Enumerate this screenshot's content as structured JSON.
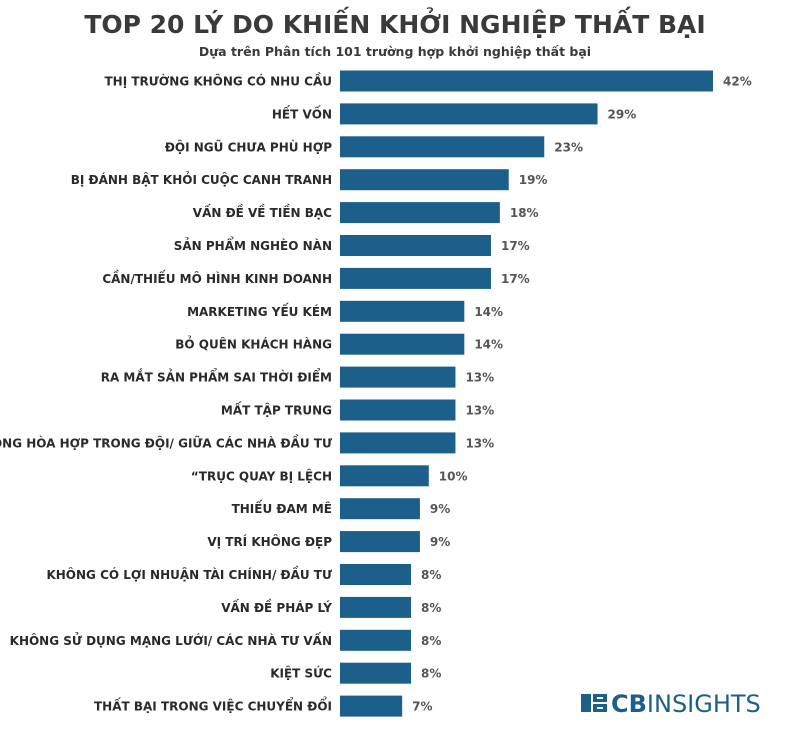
{
  "chart_data": {
    "type": "bar",
    "orientation": "horizontal",
    "title": "TOP 20 LÝ DO KHIẾN KHỞI NGHIỆP THẤT BẠI",
    "subtitle": "Dựa trên Phân tích 101 trường hợp khởi nghiệp thất bại",
    "categories": [
      "THỊ TRƯỜNG KHÔNG CÓ NHU CẦU",
      "HẾT VỐN",
      "ĐỘI NGŨ CHƯA PHÙ HỢP",
      "BỊ ĐÁNH BẬT KHỎI CUỘC CANH TRANH",
      "VẤN ĐỀ VỀ TIỀN BẠC",
      "SẢN PHẨM NGHÈO NÀN",
      "CẦN/THIẾU MÔ HÌNH KINH DOANH",
      "MARKETING YẾU KÉM",
      "BỎ QUÊN KHÁCH HÀNG",
      "RA MẮT SẢN PHẨM SAI THỜI ĐIỂM",
      "MẤT TẬP TRUNG",
      "SỰ KHÔNG HÒA HỢP TRONG ĐỘI/ GIỮA CÁC NHÀ ĐẦU TƯ",
      "“TRỤC QUAY BỊ LỆCH",
      "THIẾU ĐAM MÊ",
      "VỊ TRÍ KHÔNG ĐẸP",
      "KHÔNG CÓ LỢI NHUẬN TÀI CHÍNH/ ĐẦU TƯ",
      "VẤN ĐỀ PHÁP LÝ",
      "KHÔNG SỬ DỤNG MẠNG LƯỚI/ CÁC NHÀ TƯ VẤN",
      "KIỆT SỨC",
      "THẤT BẠI TRONG VIỆC CHUYỂN ĐỔI"
    ],
    "values": [
      42,
      29,
      23,
      19,
      18,
      17,
      17,
      14,
      14,
      13,
      13,
      13,
      10,
      9,
      9,
      8,
      8,
      8,
      8,
      7
    ],
    "value_labels": [
      "42%",
      "29%",
      "23%",
      "19%",
      "18%",
      "17%",
      "17%",
      "14%",
      "14%",
      "13%",
      "13%",
      "13%",
      "10%",
      "9%",
      "9%",
      "8%",
      "8%",
      "8%",
      "8%",
      "7%"
    ],
    "xlim": [
      0,
      42
    ],
    "grid": false,
    "bar_color": "#1b5f8a"
  },
  "logo": {
    "text_bold": "CB",
    "text_light": "INSIGHTS",
    "color": "#1b5f8a",
    "icon": "cb-insights-logo-icon"
  },
  "colors": {
    "title": "#3a3a3a",
    "label": "#2a2a2a"
  }
}
